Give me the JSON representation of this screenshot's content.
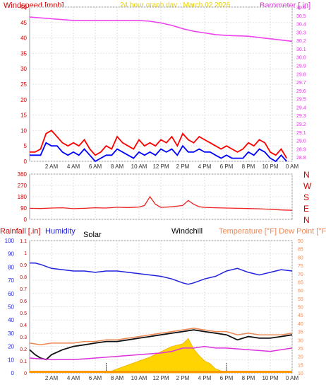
{
  "header": {
    "left_label": "Windspeed [mph]",
    "center_label": "24 hour graph day : March 02 2026",
    "right_label": "Barometer [.in]"
  },
  "time_labels": [
    "2 AM",
    "4 AM",
    "6 AM",
    "8 AM",
    "10 AM",
    "12 PM",
    "2 PM",
    "4 PM",
    "6 PM",
    "8 PM",
    "10 PM",
    "0 AM"
  ],
  "chart_data": [
    {
      "type": "line",
      "panel": "wind-barometer",
      "x_unit": "hours since midnight",
      "xlim": [
        0,
        24
      ],
      "left_axis": {
        "ticks": [
          "0",
          "5",
          "10",
          "15",
          "20",
          "25",
          "30",
          "35",
          "40",
          "45",
          "50"
        ],
        "ylim": [
          0,
          50
        ]
      },
      "right_axis": {
        "ticks": [
          "28.8",
          "28.9",
          "29.0",
          "29.1",
          "29.2",
          "29.3",
          "29.4",
          "29.5",
          "29.6",
          "29.7",
          "29.8",
          "29.9",
          "30.0",
          "30.1",
          "30.2",
          "30.3",
          "30.4",
          "30.5",
          "30.6"
        ],
        "ylim": [
          28.75,
          30.6
        ]
      },
      "series": [
        {
          "name": "Windspeed",
          "axis": "left",
          "color": "#ff0000",
          "x": [
            0,
            0.5,
            1,
            1.5,
            2,
            2.5,
            3,
            3.5,
            4,
            4.5,
            5,
            5.5,
            6,
            6.5,
            7,
            7.5,
            8,
            8.5,
            9,
            9.5,
            10,
            10.5,
            11,
            11.5,
            12,
            12.5,
            13,
            13.5,
            14,
            14.5,
            15,
            15.5,
            16,
            16.5,
            17,
            17.5,
            18,
            18.5,
            19,
            19.5,
            20,
            20.5,
            21,
            21.5,
            22,
            22.5,
            23,
            23.5
          ],
          "y": [
            3,
            3,
            4,
            9,
            10,
            8,
            6,
            5,
            6,
            5,
            7,
            4,
            2,
            3,
            5,
            4,
            8,
            6,
            5,
            4,
            7,
            5,
            6,
            5,
            7,
            6,
            8,
            5,
            9,
            7,
            6,
            8,
            7,
            6,
            5,
            4,
            5,
            4,
            3,
            4,
            6,
            5,
            7,
            6,
            3,
            2,
            4,
            1
          ]
        },
        {
          "name": "Gust",
          "axis": "left",
          "color": "#0000ff",
          "x": [
            0,
            0.5,
            1,
            1.5,
            2,
            2.5,
            3,
            3.5,
            4,
            4.5,
            5,
            5.5,
            6,
            6.5,
            7,
            7.5,
            8,
            8.5,
            9,
            9.5,
            10,
            10.5,
            11,
            11.5,
            12,
            12.5,
            13,
            13.5,
            14,
            14.5,
            15,
            15.5,
            16,
            16.5,
            17,
            17.5,
            18,
            18.5,
            19,
            19.5,
            20,
            20.5,
            21,
            21.5,
            22,
            22.5,
            23,
            23.5
          ],
          "y": [
            2,
            2,
            2,
            6,
            5,
            5,
            3,
            2,
            3,
            2,
            4,
            2,
            0,
            1,
            2,
            2,
            4,
            3,
            2,
            1,
            3,
            2,
            3,
            2,
            4,
            3,
            4,
            2,
            5,
            3,
            3,
            4,
            3,
            3,
            2,
            1,
            2,
            1,
            1,
            1,
            3,
            2,
            4,
            3,
            1,
            0,
            2,
            0
          ]
        },
        {
          "name": "Barometer",
          "axis": "right",
          "color": "#ee44ee",
          "x": [
            0,
            2,
            4,
            6,
            8,
            10,
            11,
            12,
            13,
            14,
            15,
            16,
            17,
            18,
            20,
            22,
            24
          ],
          "y": [
            30.48,
            30.46,
            30.44,
            30.44,
            30.44,
            30.44,
            30.43,
            30.41,
            30.38,
            30.34,
            30.31,
            30.29,
            30.27,
            30.26,
            30.25,
            30.22,
            30.19
          ]
        }
      ]
    },
    {
      "type": "line",
      "panel": "wind-direction",
      "x_unit": "hours since midnight",
      "xlim": [
        0,
        24
      ],
      "left_axis": {
        "ticks": [
          "0",
          "90",
          "180",
          "270",
          "360"
        ],
        "ylim": [
          0,
          360
        ]
      },
      "direction_labels": [
        "N",
        "W",
        "S",
        "E",
        "N"
      ],
      "series": [
        {
          "name": "Wind Direction",
          "axis": "left",
          "color": "#ee2222",
          "x": [
            0,
            1,
            2,
            3,
            4,
            5,
            6,
            7,
            8,
            9,
            10,
            10.5,
            11,
            11.5,
            12,
            13,
            14,
            14.5,
            15,
            15.5,
            16,
            17,
            18,
            19,
            20,
            21,
            22,
            23,
            24
          ],
          "y": [
            88,
            86,
            90,
            92,
            85,
            88,
            92,
            90,
            96,
            94,
            98,
            110,
            180,
            120,
            95,
            100,
            110,
            150,
            120,
            100,
            95,
            92,
            90,
            88,
            86,
            84,
            80,
            75,
            72
          ]
        }
      ]
    },
    {
      "type": "line",
      "panel": "temperature-humidity",
      "labels": {
        "rainfall": "Rainfall [.in]",
        "humidity": "Humidity",
        "solar": "Solar",
        "windchill": "Windchill",
        "temperature": "Temperature [°F] Dew Point [°F]"
      },
      "x_unit": "hours since midnight",
      "xlim": [
        0,
        24
      ],
      "left_pct_axis": {
        "ticks": [
          "0",
          "10",
          "20",
          "30",
          "40",
          "50",
          "60",
          "70",
          "80",
          "90",
          "100"
        ],
        "ylim": [
          0,
          100
        ]
      },
      "left_rain_axis": {
        "ticks": [
          "0",
          "0.1",
          "0.2",
          "0.3",
          "0.4",
          "0.5",
          "0.6",
          "0.7",
          "0.8",
          "0.9",
          "1",
          "1.1"
        ],
        "ylim": [
          0,
          1.1
        ]
      },
      "right_axis": {
        "ticks": [
          "10",
          "15",
          "20",
          "25",
          "30",
          "35",
          "40",
          "45",
          "50",
          "55",
          "60",
          "65",
          "70",
          "75",
          "80",
          "85",
          "90"
        ],
        "ylim": [
          10,
          90
        ]
      },
      "series": [
        {
          "name": "Humidity",
          "axis": "left_pct",
          "color": "#2222dd",
          "x": [
            0,
            0.5,
            1,
            2,
            3,
            4,
            5,
            6,
            7,
            8,
            9,
            10,
            11,
            12,
            13,
            14,
            14.5,
            15,
            16,
            17,
            18,
            19,
            20,
            21,
            22,
            23,
            24
          ],
          "y": [
            83,
            83,
            82,
            79,
            78,
            77,
            77,
            76,
            77,
            77,
            76,
            75,
            74,
            73,
            71,
            68,
            67,
            68,
            71,
            73,
            77,
            79,
            76,
            74,
            76,
            78,
            77
          ]
        },
        {
          "name": "Temperature",
          "axis": "right",
          "color": "#ee8855",
          "x": [
            0,
            1,
            2,
            3,
            4,
            5,
            6,
            7,
            8,
            9,
            10,
            11,
            12,
            13,
            14,
            15,
            16,
            17,
            18,
            19,
            20,
            21,
            22,
            23,
            24
          ],
          "y": [
            28,
            27,
            28,
            28,
            28,
            29,
            29,
            30,
            30,
            31,
            32,
            33,
            34,
            35,
            36,
            37,
            36,
            35,
            35,
            33,
            34,
            33,
            33,
            33,
            34
          ]
        },
        {
          "name": "Windchill",
          "axis": "right",
          "color": "#111111",
          "x": [
            0,
            0.5,
            1,
            1.5,
            2,
            3,
            4,
            5,
            6,
            7,
            8,
            9,
            10,
            11,
            12,
            13,
            14,
            15,
            16,
            17,
            18,
            19,
            20,
            21,
            22,
            23,
            24
          ],
          "y": [
            24,
            21,
            19,
            18,
            21,
            24,
            26,
            27,
            28,
            29,
            29,
            30,
            31,
            32,
            33,
            34,
            35,
            36,
            35,
            34,
            33,
            30,
            32,
            31,
            31,
            32,
            33
          ]
        },
        {
          "name": "Dew Point",
          "axis": "right",
          "color": "#dd33dd",
          "x": [
            0,
            2,
            4,
            6,
            8,
            10,
            12,
            13,
            14,
            15,
            16,
            17,
            18,
            20,
            22,
            24
          ],
          "y": [
            19,
            18,
            18,
            19,
            20,
            21,
            22,
            23,
            25,
            25,
            26,
            25,
            25,
            24,
            23,
            25
          ]
        },
        {
          "name": "Solar",
          "axis": "left_pct",
          "color": "#ffcc00",
          "x": [
            7,
            8,
            9,
            10,
            11,
            12,
            13,
            14,
            14.5,
            15,
            15.5,
            16,
            16.5,
            17,
            18
          ],
          "y": [
            0,
            3,
            6,
            9,
            12,
            16,
            20,
            22,
            26,
            18,
            13,
            9,
            7,
            3,
            0
          ]
        }
      ]
    }
  ]
}
